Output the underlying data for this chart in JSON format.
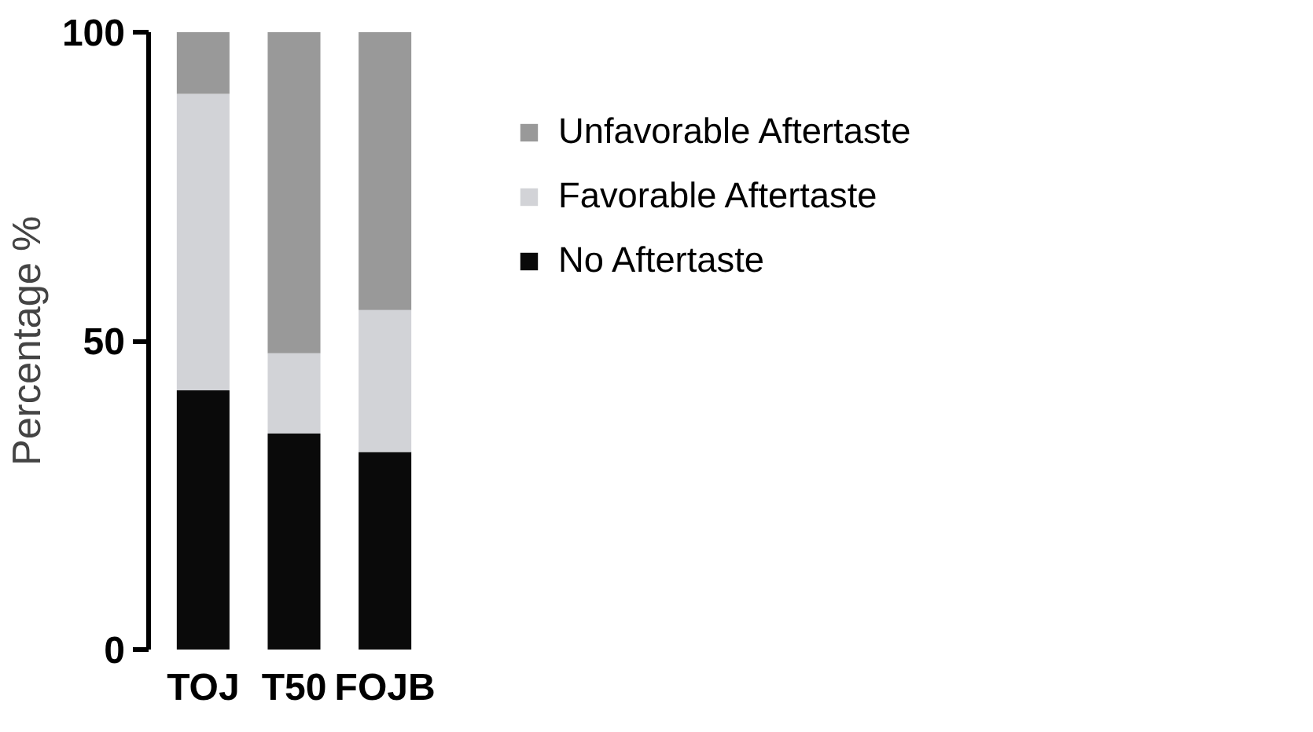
{
  "chart_data": {
    "type": "bar",
    "stacked": true,
    "ylabel": "Percentage %",
    "categories": [
      "TOJ",
      "T50",
      "FOJB"
    ],
    "series": [
      {
        "name": "No Aftertaste",
        "color": "#0a0a0a",
        "values": [
          42,
          35,
          32
        ]
      },
      {
        "name": "Favorable Aftertaste",
        "color": "#d2d3d7",
        "values": [
          48,
          13,
          23
        ]
      },
      {
        "name": "Unfavorable Aftertaste",
        "color": "#999999",
        "values": [
          10,
          52,
          45
        ]
      }
    ],
    "ylim": [
      0,
      100
    ],
    "yticks": [
      0,
      50,
      100
    ],
    "grid": false,
    "legend": "right"
  }
}
